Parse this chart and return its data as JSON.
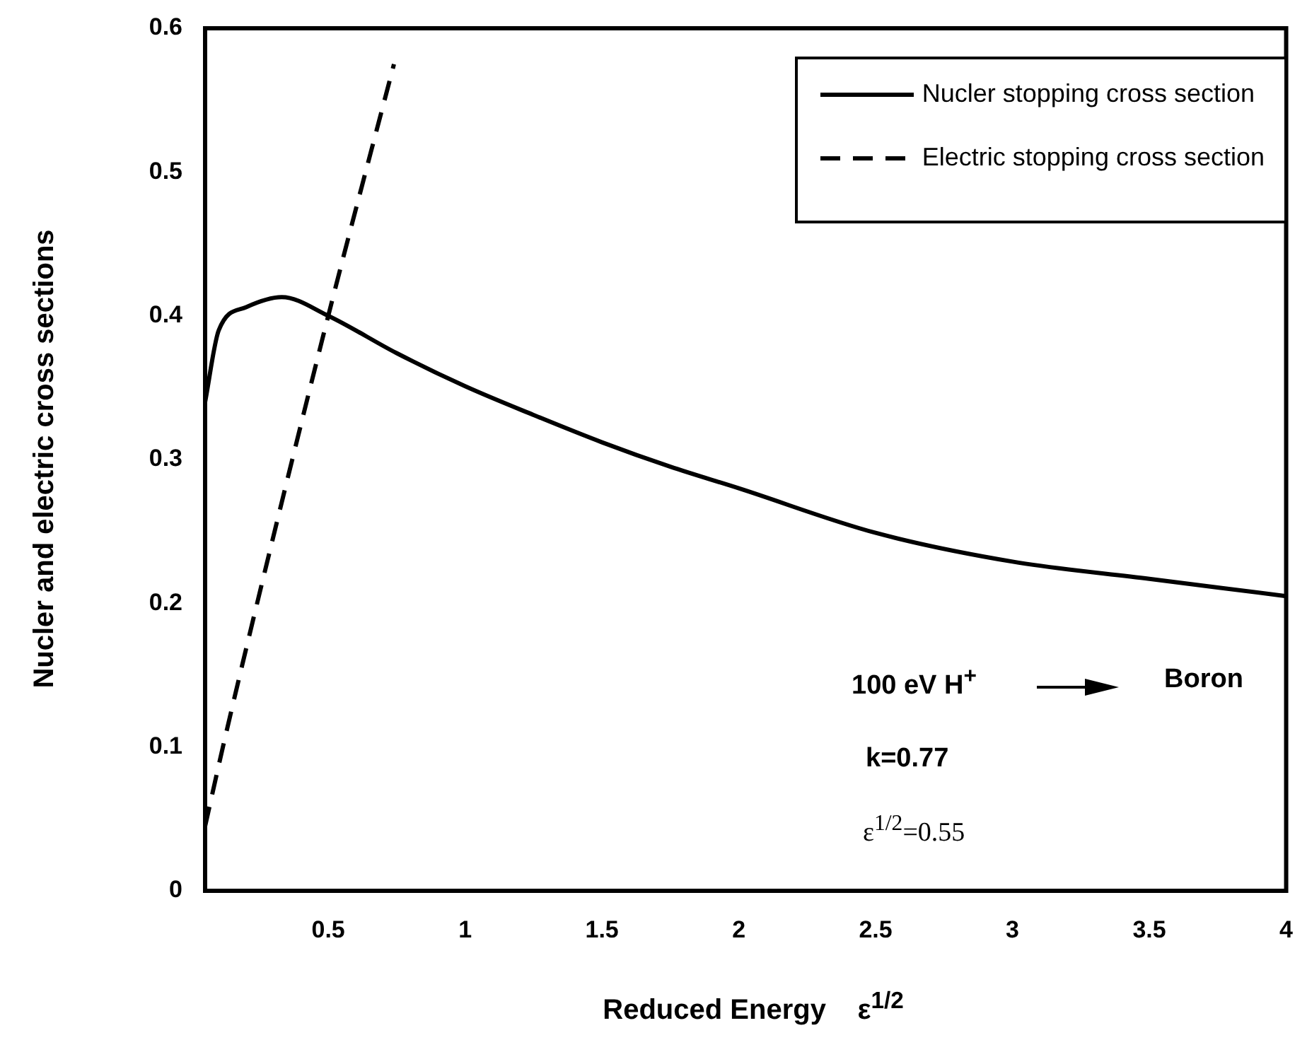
{
  "chart_data": {
    "type": "line",
    "xlabel": "Reduced Energy    ε$^{1/2}$",
    "ylabel": "Nucler and electric cross sections",
    "xlim": [
      0.05,
      4
    ],
    "ylim": [
      0,
      0.6
    ],
    "xticks": [
      0.5,
      1,
      1.5,
      2,
      2.5,
      3,
      3.5,
      4
    ],
    "yticks": [
      0,
      0.1,
      0.2,
      0.3,
      0.4,
      0.5,
      0.6
    ],
    "grid": false,
    "legend": "top right",
    "marker": "none",
    "series": [
      {
        "name": "Nucler stopping cross section",
        "color": "#000000",
        "line_style": "solid",
        "x": [
          0.05,
          0.1,
          0.2,
          0.33,
          0.5,
          0.75,
          1,
          1.25,
          1.5,
          1.75,
          2,
          2.5,
          3,
          3.5,
          4
        ],
        "values": [
          0.34,
          0.39,
          0.406,
          0.413,
          0.4,
          0.374,
          0.351,
          0.331,
          0.312,
          0.295,
          0.28,
          0.249,
          0.229,
          0.217,
          0.205
        ]
      },
      {
        "name": "Electric stopping cross section",
        "color": "#000000",
        "line_style": "dashed",
        "x": [
          0.05,
          0.115,
          0.24,
          0.5,
          0.74
        ],
        "values": [
          0.045,
          0.1,
          0.2,
          0.4,
          0.575
        ]
      }
    ],
    "annotations": [
      "100 eV H$^{+}$",
      "Boron",
      "k=0.77",
      "ε$^{1/2}$=0.55"
    ]
  }
}
